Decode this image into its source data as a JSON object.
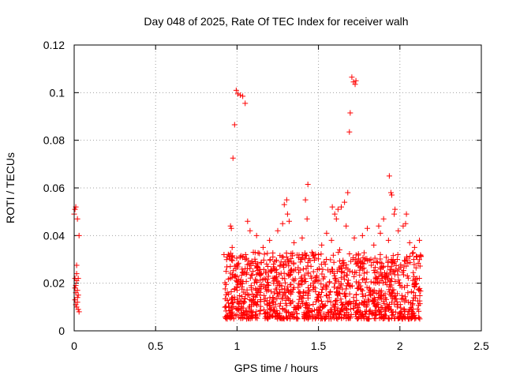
{
  "chart_data": {
    "type": "scatter",
    "title": "Day 048 of 2025, Rate Of TEC Index for receiver walh",
    "xlabel": "GPS time / hours",
    "ylabel": "ROTI / TECUs",
    "xlim": [
      0,
      2.5
    ],
    "ylim": [
      0,
      0.12
    ],
    "grid": true,
    "marker": "plus",
    "color": "#ff0000",
    "x_ticks": [
      0,
      0.5,
      1,
      1.5,
      2,
      2.5
    ],
    "x_tick_labels": [
      "0",
      "0.5",
      "1",
      "1.5",
      "2",
      "2.5"
    ],
    "y_ticks": [
      0,
      0.02,
      0.04,
      0.06,
      0.08,
      0.1,
      0.12
    ],
    "y_tick_labels": [
      "0",
      "0.02",
      "0.04",
      "0.06",
      "0.08",
      "0.1",
      "0.12"
    ],
    "series": [
      {
        "name": "ROTI",
        "points": [
          [
            0.0,
            0.049
          ],
          [
            0.005,
            0.051
          ],
          [
            0.01,
            0.052
          ],
          [
            0.015,
            0.0275
          ],
          [
            0.02,
            0.047
          ],
          [
            0.03,
            0.04
          ],
          [
            0.005,
            0.022
          ],
          [
            0.01,
            0.019
          ],
          [
            0.015,
            0.021
          ],
          [
            0.02,
            0.017
          ],
          [
            0.025,
            0.015
          ],
          [
            0.005,
            0.013
          ],
          [
            0.01,
            0.011
          ],
          [
            0.015,
            0.01
          ],
          [
            0.02,
            0.012
          ],
          [
            0.025,
            0.009
          ],
          [
            0.03,
            0.008
          ],
          [
            0.01,
            0.016
          ],
          [
            0.02,
            0.014
          ],
          [
            0.005,
            0.018
          ],
          [
            0.025,
            0.022
          ],
          [
            0.015,
            0.024
          ],
          [
            0.975,
            0.0725
          ],
          [
            0.985,
            0.0865
          ],
          [
            0.995,
            0.101
          ],
          [
            1.005,
            0.0995
          ],
          [
            1.02,
            0.099
          ],
          [
            1.035,
            0.0985
          ],
          [
            1.05,
            0.0955
          ],
          [
            1.69,
            0.0835
          ],
          [
            1.695,
            0.0915
          ],
          [
            1.705,
            0.1065
          ],
          [
            1.715,
            0.1045
          ],
          [
            1.725,
            0.1035
          ],
          [
            1.73,
            0.105
          ],
          [
            0.96,
            0.044
          ],
          [
            0.965,
            0.043
          ],
          [
            1.065,
            0.046
          ],
          [
            1.08,
            0.042
          ],
          [
            1.29,
            0.053
          ],
          [
            1.305,
            0.055
          ],
          [
            1.31,
            0.049
          ],
          [
            1.32,
            0.046
          ],
          [
            1.42,
            0.055
          ],
          [
            1.435,
            0.0615
          ],
          [
            1.43,
            0.047
          ],
          [
            1.6,
            0.049
          ],
          [
            1.62,
            0.051
          ],
          [
            1.64,
            0.052
          ],
          [
            1.66,
            0.054
          ],
          [
            1.68,
            0.058
          ],
          [
            1.61,
            0.047
          ],
          [
            1.585,
            0.052
          ],
          [
            1.935,
            0.065
          ],
          [
            1.945,
            0.058
          ],
          [
            1.95,
            0.057
          ],
          [
            1.97,
            0.051
          ],
          [
            1.965,
            0.049
          ],
          [
            2.04,
            0.049
          ],
          [
            2.02,
            0.044
          ],
          [
            2.035,
            0.045
          ],
          [
            1.9,
            0.047
          ],
          [
            1.87,
            0.044
          ],
          [
            0.92,
            0.032
          ],
          [
            0.94,
            0.031
          ],
          [
            0.97,
            0.035
          ],
          [
            1.12,
            0.04
          ],
          [
            1.16,
            0.035
          ],
          [
            1.2,
            0.038
          ],
          [
            1.25,
            0.042
          ],
          [
            1.28,
            0.045
          ],
          [
            1.35,
            0.037
          ],
          [
            1.4,
            0.039
          ],
          [
            1.46,
            0.033
          ],
          [
            1.52,
            0.036
          ],
          [
            1.55,
            0.041
          ],
          [
            1.58,
            0.038
          ],
          [
            1.63,
            0.034
          ],
          [
            1.67,
            0.044
          ],
          [
            1.72,
            0.039
          ],
          [
            1.77,
            0.04
          ],
          [
            1.8,
            0.043
          ],
          [
            1.84,
            0.036
          ],
          [
            1.88,
            0.041
          ],
          [
            1.93,
            0.038
          ],
          [
            1.99,
            0.042
          ],
          [
            2.06,
            0.037
          ],
          [
            2.09,
            0.035
          ],
          [
            2.12,
            0.038
          ],
          [
            1.05,
            0.03
          ],
          [
            1.1,
            0.033
          ],
          [
            1.22,
            0.031
          ]
        ]
      }
    ]
  }
}
